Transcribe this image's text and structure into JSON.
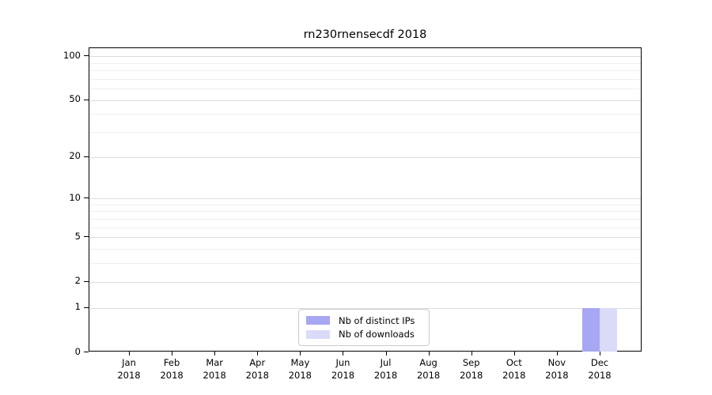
{
  "title": "rn230rnensecdf 2018",
  "colors": {
    "distinct_ips": "#a7a7f3",
    "downloads": "#dadaf9",
    "grid_major": "#dcdcdc",
    "grid_minor": "#efefef",
    "axis": "#000000",
    "legend_border": "#cccccc"
  },
  "legend": {
    "entries": [
      {
        "label": "Nb of distinct IPs",
        "color": "#a7a7f3"
      },
      {
        "label": "Nb of downloads",
        "color": "#dadaf9"
      }
    ]
  },
  "chart_data": {
    "type": "bar",
    "title": "rn230rnensecdf 2018",
    "months": [
      "Jan",
      "Feb",
      "Mar",
      "Apr",
      "May",
      "Jun",
      "Jul",
      "Aug",
      "Sep",
      "Oct",
      "Nov",
      "Dec"
    ],
    "year": "2018",
    "categories": [
      "Jan 2018",
      "Feb 2018",
      "Mar 2018",
      "Apr 2018",
      "May 2018",
      "Jun 2018",
      "Jul 2018",
      "Aug 2018",
      "Sep 2018",
      "Oct 2018",
      "Nov 2018",
      "Dec 2018"
    ],
    "series": [
      {
        "name": "Nb of distinct IPs",
        "color": "#a7a7f3",
        "values": [
          0,
          0,
          0,
          0,
          0,
          0,
          0,
          0,
          0,
          0,
          0,
          1
        ]
      },
      {
        "name": "Nb of downloads",
        "color": "#dadaf9",
        "values": [
          0,
          0,
          0,
          0,
          0,
          0,
          0,
          0,
          0,
          0,
          0,
          1
        ]
      }
    ],
    "y_scale": "log1p",
    "y_ticks": [
      0,
      1,
      2,
      5,
      10,
      20,
      50,
      100
    ],
    "y_minor_ticks": [
      3,
      4,
      6,
      7,
      8,
      9,
      30,
      40,
      60,
      70,
      80,
      90
    ],
    "ylim": [
      0,
      113
    ],
    "grid": true,
    "legend_position": "lower center"
  }
}
